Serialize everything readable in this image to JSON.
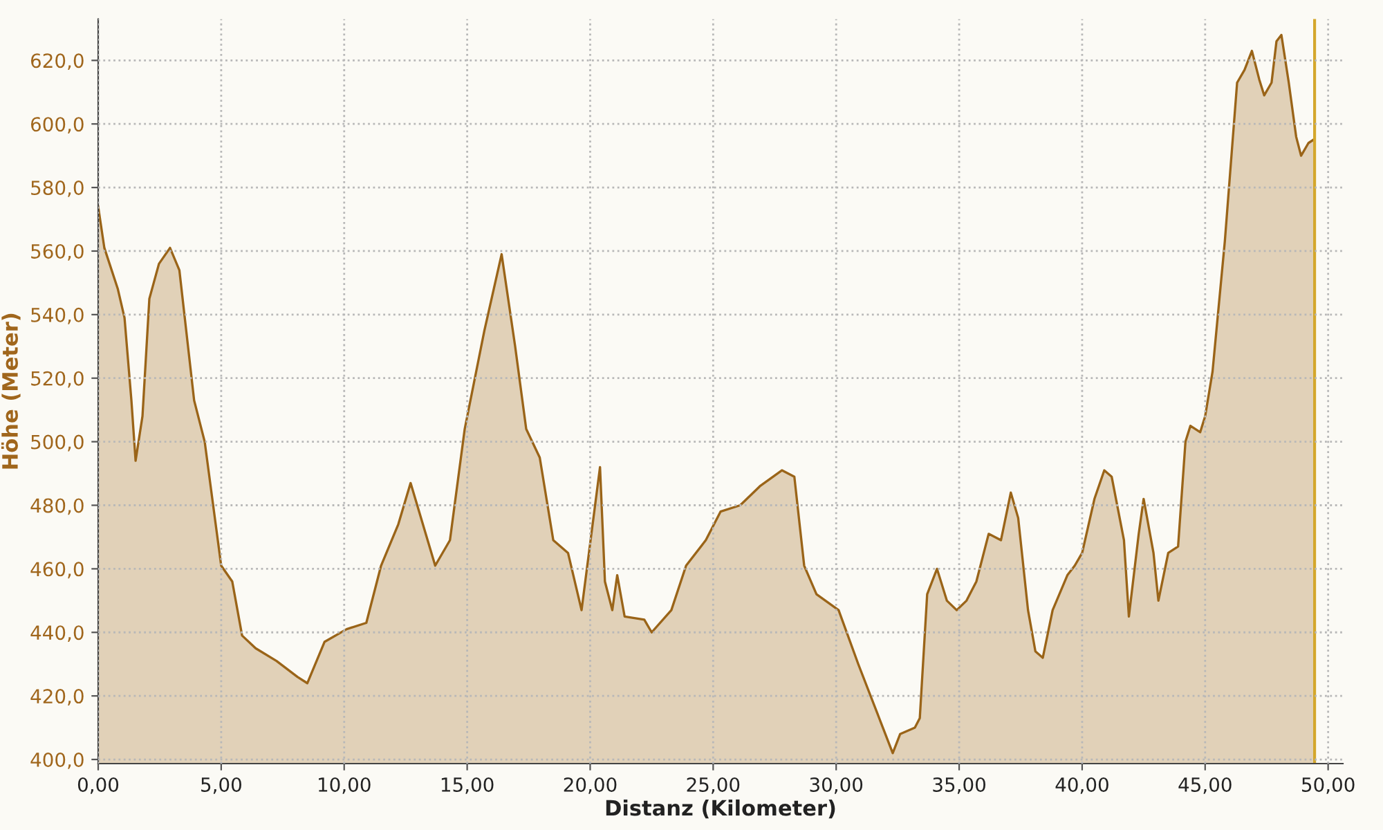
{
  "chart_data": {
    "type": "area",
    "xlabel": "Distanz (Kilometer)",
    "ylabel": "Höhe (Meter)",
    "x": [
      0,
      0.25,
      0.8,
      1.07,
      1.35,
      1.52,
      1.8,
      2.08,
      2.47,
      2.92,
      3.3,
      3.9,
      4.33,
      5.0,
      5.45,
      5.85,
      6.4,
      7.25,
      8.1,
      8.5,
      9.2,
      10.1,
      10.9,
      11.5,
      12.2,
      12.7,
      13.2,
      13.7,
      14.3,
      14.9,
      15.7,
      16.4,
      16.95,
      17.4,
      17.95,
      18.5,
      19.1,
      19.65,
      20.1,
      20.4,
      20.6,
      20.9,
      21.1,
      21.4,
      22.2,
      22.5,
      23.3,
      23.9,
      24.7,
      25.3,
      26.1,
      26.9,
      27.8,
      28.3,
      28.7,
      29.2,
      30.1,
      30.9,
      31.9,
      32.3,
      32.6,
      33.2,
      33.4,
      33.7,
      34.1,
      34.5,
      34.9,
      35.3,
      35.7,
      36.2,
      36.7,
      37.1,
      37.4,
      37.8,
      38.1,
      38.4,
      38.8,
      39.4,
      39.7,
      40.0,
      40.5,
      40.9,
      41.2,
      41.7,
      41.9,
      42.3,
      42.5,
      42.9,
      43.1,
      43.5,
      43.9,
      44.2,
      44.4,
      44.8,
      45.0,
      45.3,
      45.8,
      46.3,
      46.6,
      46.9,
      47.2,
      47.4,
      47.7,
      47.9,
      48.1,
      48.4,
      48.7,
      48.9,
      49.2,
      49.4
    ],
    "series": [
      {
        "color": "#9a6418",
        "values": [
          574,
          561,
          548,
          539,
          513,
          494,
          508,
          545,
          556,
          561,
          554,
          513,
          500,
          461,
          456,
          439,
          435,
          431,
          426,
          424,
          437,
          441,
          443,
          461,
          474,
          487,
          474,
          461,
          469,
          504,
          535,
          559,
          530,
          504,
          495,
          469,
          465,
          447,
          474,
          492,
          456,
          447,
          458,
          445,
          444,
          440,
          447,
          461,
          469,
          478,
          480,
          486,
          491,
          489,
          461,
          452,
          447,
          430,
          410,
          402,
          408,
          410,
          413,
          452,
          460,
          450,
          447,
          450,
          456,
          471,
          469,
          484,
          476,
          447,
          434,
          432,
          447,
          458,
          461,
          465,
          482,
          491,
          489,
          469,
          445,
          471,
          482,
          465,
          450,
          465,
          467,
          500,
          505,
          503,
          508,
          522,
          563,
          613,
          617,
          623,
          614,
          609,
          613,
          626,
          628,
          613,
          596,
          590,
          594,
          595
        ]
      }
    ],
    "xlim": [
      0,
      50.6
    ],
    "ylim": [
      398.7,
      633
    ],
    "xticks": [
      {
        "value": 0,
        "label": "0,00"
      },
      {
        "value": 5,
        "label": "5,00"
      },
      {
        "value": 10,
        "label": "10,00"
      },
      {
        "value": 15,
        "label": "15,00"
      },
      {
        "value": 20,
        "label": "20,00"
      },
      {
        "value": 25,
        "label": "25,00"
      },
      {
        "value": 30,
        "label": "30,00"
      },
      {
        "value": 35,
        "label": "35,00"
      },
      {
        "value": 40,
        "label": "40,00"
      },
      {
        "value": 45,
        "label": "45,00"
      },
      {
        "value": 50,
        "label": "50,00"
      }
    ],
    "yticks": [
      {
        "value": 400,
        "label": "400,0"
      },
      {
        "value": 420,
        "label": "420,0"
      },
      {
        "value": 440,
        "label": "440,0"
      },
      {
        "value": 460,
        "label": "460,0"
      },
      {
        "value": 480,
        "label": "480,0"
      },
      {
        "value": 500,
        "label": "500,0"
      },
      {
        "value": 520,
        "label": "520,0"
      },
      {
        "value": 540,
        "label": "540,0"
      },
      {
        "value": 560,
        "label": "560,0"
      },
      {
        "value": 580,
        "label": "580,0"
      },
      {
        "value": 600,
        "label": "600,0"
      },
      {
        "value": 620,
        "label": "620,0"
      }
    ],
    "ref_lines": [
      {
        "axis": "x",
        "value": 49.45,
        "label": null,
        "color": "#d4a72c"
      }
    ],
    "grid": true,
    "line_style": "solid"
  }
}
